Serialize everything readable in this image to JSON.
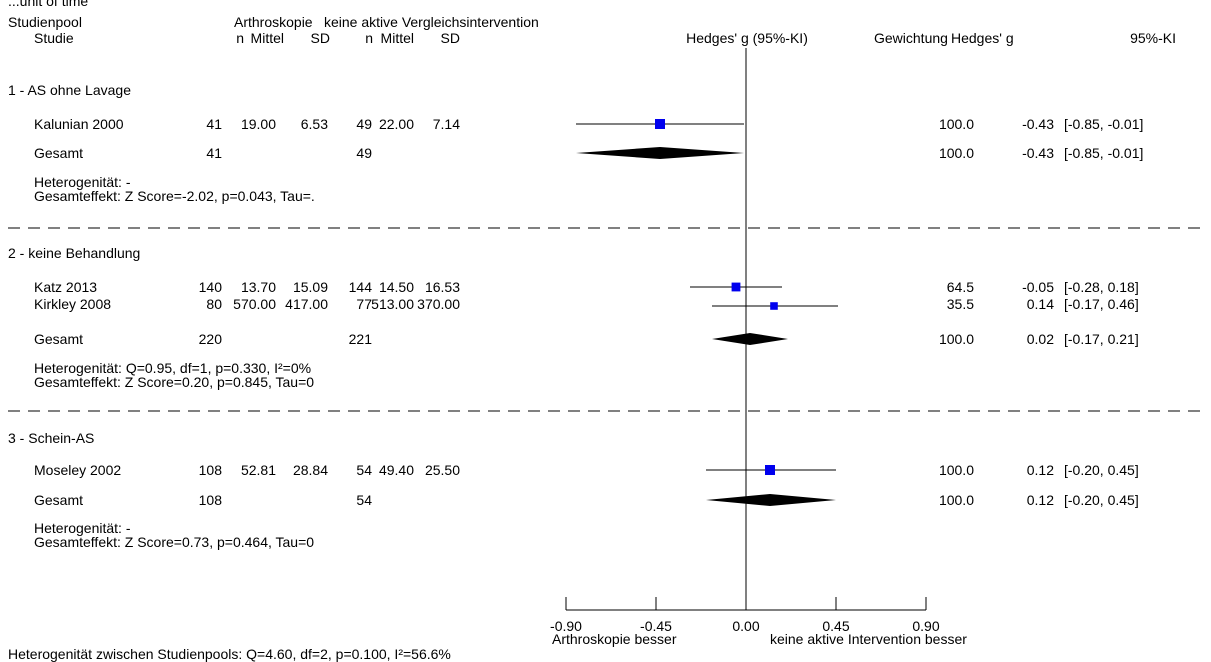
{
  "header": {
    "top_line": "...unit of time",
    "studienpool": "Studienpool",
    "studie": "Studie",
    "group_a": "Arthroskopie",
    "group_b": "keine aktive Vergleichsintervention",
    "n": "n",
    "mittel": "Mittel",
    "sd": "SD",
    "effect_col": "Hedges' g (95%-KI)",
    "weight_col": "Gewichtung",
    "g_col": "Hedges' g",
    "ci_col": "95%-KI"
  },
  "pools": [
    {
      "title": "1 - AS ohne Lavage",
      "studies": [
        {
          "name": "Kalunian 2000",
          "n1": "41",
          "m1": "19.00",
          "sd1": "6.53",
          "n2": "49",
          "m2": "22.00",
          "sd2": "7.14",
          "weight": "100.0",
          "g": "-0.43",
          "ci": "[-0.85, -0.01]"
        }
      ],
      "total": {
        "label": "Gesamt",
        "n1": "41",
        "n2": "49",
        "weight": "100.0",
        "g": "-0.43",
        "ci": "[-0.85, -0.01]"
      },
      "heterogeneity": "Heterogenität: -",
      "overall": "Gesamteffekt: Z Score=-2.02, p=0.043, Tau=."
    },
    {
      "title": "2 - keine Behandlung",
      "studies": [
        {
          "name": "Katz 2013",
          "n1": "140",
          "m1": "13.70",
          "sd1": "15.09",
          "n2": "144",
          "m2": "14.50",
          "sd2": "16.53",
          "weight": "64.5",
          "g": "-0.05",
          "ci": "[-0.28, 0.18]"
        },
        {
          "name": "Kirkley 2008",
          "n1": "80",
          "m1": "570.00",
          "sd1": "417.00",
          "n2": "77",
          "m2": "513.00",
          "sd2": "370.00",
          "weight": "35.5",
          "g": "0.14",
          "ci": "[-0.17, 0.46]"
        }
      ],
      "total": {
        "label": "Gesamt",
        "n1": "220",
        "n2": "221",
        "weight": "100.0",
        "g": "0.02",
        "ci": "[-0.17, 0.21]"
      },
      "heterogeneity": "Heterogenität: Q=0.95, df=1, p=0.330, I²=0%",
      "overall": "Gesamteffekt: Z Score=0.20, p=0.845, Tau=0"
    },
    {
      "title": "3 - Schein-AS",
      "studies": [
        {
          "name": "Moseley 2002",
          "n1": "108",
          "m1": "52.81",
          "sd1": "28.84",
          "n2": "54",
          "m2": "49.40",
          "sd2": "25.50",
          "weight": "100.0",
          "g": "0.12",
          "ci": "[-0.20, 0.45]"
        }
      ],
      "total": {
        "label": "Gesamt",
        "n1": "108",
        "n2": "54",
        "weight": "100.0",
        "g": "0.12",
        "ci": "[-0.20, 0.45]"
      },
      "heterogeneity": "Heterogenität: -",
      "overall": "Gesamteffekt: Z Score=0.73, p=0.464, Tau=0"
    }
  ],
  "axis": {
    "ticks": [
      "-0.90",
      "-0.45",
      "0.00",
      "0.45",
      "0.90"
    ],
    "left_label": "Arthroskopie besser",
    "right_label": "keine aktive Intervention besser"
  },
  "footer": "Heterogenität zwischen Studienpools: Q=4.60, df=2, p=0.100, I²=56.6%",
  "colors": {
    "study_marker": "#0000ee",
    "pooled_diamond": "#000000",
    "line": "#000000"
  },
  "chart_data": {
    "type": "forest",
    "effect_measure": "Hedges' g",
    "xlim": [
      -0.9,
      0.9
    ],
    "xticks": [
      -0.9,
      -0.45,
      0.0,
      0.45,
      0.9
    ],
    "series": [
      {
        "pool": 0,
        "kind": "study",
        "name": "Kalunian 2000",
        "g": -0.43,
        "lo": -0.85,
        "hi": -0.01,
        "weight": 100.0
      },
      {
        "pool": 0,
        "kind": "total",
        "name": "Gesamt",
        "g": -0.43,
        "lo": -0.85,
        "hi": -0.01
      },
      {
        "pool": 1,
        "kind": "study",
        "name": "Katz 2013",
        "g": -0.05,
        "lo": -0.28,
        "hi": 0.18,
        "weight": 64.5
      },
      {
        "pool": 1,
        "kind": "study",
        "name": "Kirkley 2008",
        "g": 0.14,
        "lo": -0.17,
        "hi": 0.46,
        "weight": 35.5
      },
      {
        "pool": 1,
        "kind": "total",
        "name": "Gesamt",
        "g": 0.02,
        "lo": -0.17,
        "hi": 0.21
      },
      {
        "pool": 2,
        "kind": "study",
        "name": "Moseley 2002",
        "g": 0.12,
        "lo": -0.2,
        "hi": 0.45,
        "weight": 100.0
      },
      {
        "pool": 2,
        "kind": "total",
        "name": "Gesamt",
        "g": 0.12,
        "lo": -0.2,
        "hi": 0.45
      }
    ]
  }
}
